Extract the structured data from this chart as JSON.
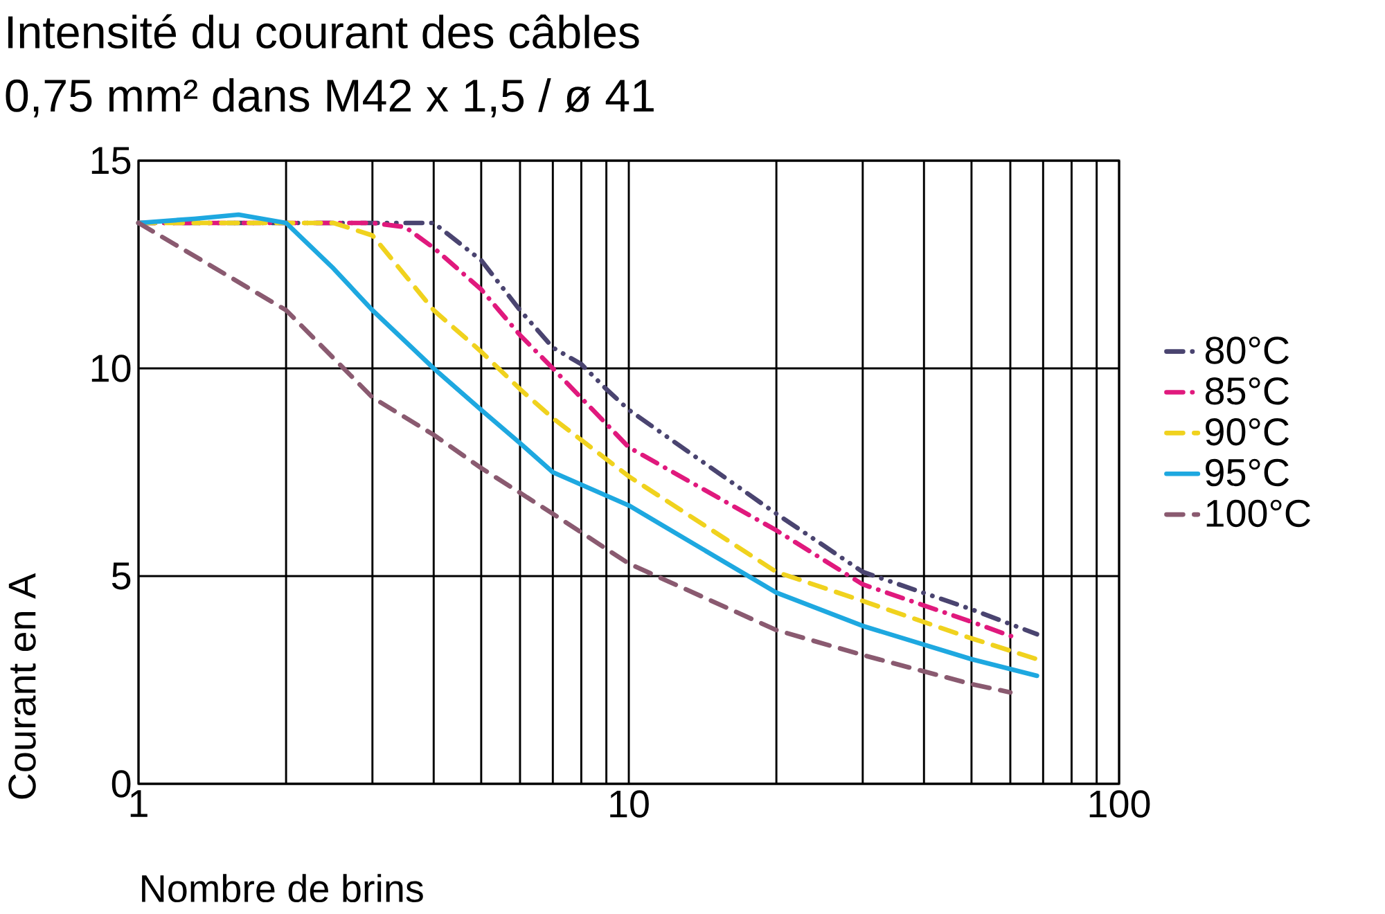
{
  "chart_data": {
    "type": "line",
    "title": "Intensité du courant des câbles",
    "subtitle": "0,75 mm² dans M42 x 1,5 / ø 41",
    "xlabel": "Nombre de brins",
    "ylabel": "Courant en A",
    "log": "x",
    "xlim": [
      1,
      100
    ],
    "xticks": [
      1,
      10,
      100
    ],
    "ylim": [
      0,
      15
    ],
    "yticks": [
      0,
      5,
      10,
      15
    ],
    "grid": true,
    "legend": "right",
    "marker": "none",
    "series": [
      {
        "name": "80°C",
        "color": "#4a4470",
        "line_style": "dashdotdot",
        "x": [
          1,
          2,
          3,
          3.5,
          4,
          5,
          6,
          7,
          8,
          9,
          10,
          20,
          30,
          50,
          68
        ],
        "values": [
          13.5,
          13.5,
          13.5,
          13.5,
          13.5,
          12.6,
          11.4,
          10.5,
          10.1,
          9.5,
          9.0,
          6.5,
          5.1,
          4.2,
          3.6
        ]
      },
      {
        "name": "85°C",
        "color": "#e0197d",
        "line_style": "dashdot",
        "x": [
          1,
          2,
          3,
          3.5,
          4,
          5,
          6,
          7,
          10,
          20,
          30,
          50,
          62
        ],
        "values": [
          13.5,
          13.5,
          13.5,
          13.4,
          12.9,
          11.9,
          10.8,
          10.0,
          8.1,
          6.1,
          4.8,
          3.9,
          3.5
        ]
      },
      {
        "name": "90°C",
        "color": "#f0d21e",
        "line_style": "dashed",
        "x": [
          1,
          2,
          2.5,
          3,
          4,
          5,
          6,
          7,
          10,
          20,
          30,
          50,
          68
        ],
        "values": [
          13.5,
          13.5,
          13.5,
          13.2,
          11.4,
          10.4,
          9.5,
          8.8,
          7.4,
          5.1,
          4.4,
          3.5,
          3.0
        ]
      },
      {
        "name": "95°C",
        "color": "#1ea8e0",
        "line_style": "solid",
        "x": [
          1,
          1.3,
          1.6,
          2,
          2.5,
          3,
          4,
          5,
          6,
          7,
          10,
          20,
          30,
          50,
          68
        ],
        "values": [
          13.5,
          13.6,
          13.7,
          13.5,
          12.4,
          11.4,
          10.0,
          9.0,
          8.2,
          7.5,
          6.7,
          4.6,
          3.8,
          3.0,
          2.6
        ]
      },
      {
        "name": "100°C",
        "color": "#8a5a70",
        "line_style": "dashed",
        "x": [
          1,
          2,
          3,
          4,
          5,
          7,
          10,
          20,
          30,
          50,
          60
        ],
        "values": [
          13.5,
          11.4,
          9.3,
          8.4,
          7.6,
          6.5,
          5.3,
          3.7,
          3.1,
          2.4,
          2.2
        ]
      }
    ]
  }
}
